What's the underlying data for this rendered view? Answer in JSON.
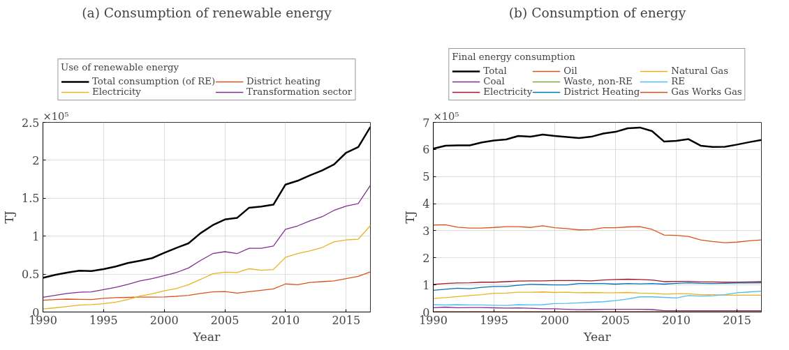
{
  "chart_data": [
    {
      "type": "line",
      "title": "(a) Consumption of renewable energy",
      "xlabel": "Year",
      "ylabel": "TJ",
      "legend_title": "Use of renewable energy",
      "annotations": [
        "×10⁵"
      ],
      "x": [
        1990,
        1991,
        1992,
        1993,
        1994,
        1995,
        1996,
        1997,
        1998,
        1999,
        2000,
        2001,
        2002,
        2003,
        2004,
        2005,
        2006,
        2007,
        2008,
        2009,
        2010,
        2011,
        2012,
        2013,
        2014,
        2015,
        2016,
        2017
      ],
      "series": [
        {
          "name": "Total consumption (of RE)",
          "color": "#000000",
          "values": [
            0.45,
            0.49,
            0.52,
            0.545,
            0.54,
            0.565,
            0.6,
            0.645,
            0.675,
            0.71,
            0.78,
            0.845,
            0.905,
            1.04,
            1.145,
            1.22,
            1.24,
            1.375,
            1.39,
            1.415,
            1.68,
            1.73,
            1.8,
            1.865,
            1.945,
            2.1,
            2.175,
            2.44
          ]
        },
        {
          "name": "District heating",
          "color": "#d95319",
          "values": [
            0.155,
            0.165,
            0.17,
            0.167,
            0.165,
            0.18,
            0.19,
            0.193,
            0.196,
            0.197,
            0.198,
            0.207,
            0.22,
            0.245,
            0.265,
            0.27,
            0.25,
            0.268,
            0.287,
            0.305,
            0.37,
            0.36,
            0.39,
            0.4,
            0.41,
            0.44,
            0.47,
            0.53
          ]
        },
        {
          "name": "Electricity",
          "color": "#edb120",
          "values": [
            0.04,
            0.055,
            0.072,
            0.09,
            0.098,
            0.11,
            0.13,
            0.165,
            0.21,
            0.24,
            0.28,
            0.31,
            0.36,
            0.43,
            0.505,
            0.525,
            0.52,
            0.57,
            0.55,
            0.56,
            0.72,
            0.77,
            0.805,
            0.85,
            0.925,
            0.95,
            0.96,
            1.14
          ]
        },
        {
          "name": "Transformation sector",
          "color": "#7e2f8e",
          "values": [
            0.195,
            0.22,
            0.245,
            0.26,
            0.265,
            0.295,
            0.325,
            0.365,
            0.41,
            0.44,
            0.48,
            0.52,
            0.58,
            0.68,
            0.77,
            0.795,
            0.77,
            0.84,
            0.84,
            0.87,
            1.09,
            1.135,
            1.2,
            1.255,
            1.34,
            1.395,
            1.43,
            1.67
          ]
        }
      ],
      "xlim": [
        1990,
        2017
      ],
      "xticks": [
        1990,
        1995,
        2000,
        2005,
        2010,
        2015
      ],
      "ylim": [
        0,
        2.5
      ],
      "yticks": [
        0,
        0.5,
        1,
        1.5,
        2,
        2.5
      ],
      "grid": true,
      "legend": "top"
    },
    {
      "type": "line",
      "title": "(b) Consumption of energy",
      "xlabel": "Year",
      "ylabel": "TJ",
      "legend_title": "Final energy consumption",
      "annotations": [
        "×10⁵"
      ],
      "x": [
        1990,
        1991,
        1992,
        1993,
        1994,
        1995,
        1996,
        1997,
        1998,
        1999,
        2000,
        2001,
        2002,
        2003,
        2004,
        2005,
        2006,
        2007,
        2008,
        2009,
        2010,
        2011,
        2012,
        2013,
        2014,
        2015,
        2016,
        2017
      ],
      "series": [
        {
          "name": "Total",
          "color": "#000000",
          "values": [
            6.03,
            6.14,
            6.15,
            6.15,
            6.26,
            6.33,
            6.37,
            6.5,
            6.47,
            6.55,
            6.5,
            6.46,
            6.42,
            6.47,
            6.59,
            6.65,
            6.78,
            6.81,
            6.68,
            6.29,
            6.32,
            6.38,
            6.14,
            6.09,
            6.1,
            6.18,
            6.27,
            6.35
          ]
        },
        {
          "name": "Oil",
          "color": "#d95319",
          "values": [
            3.21,
            3.22,
            3.13,
            3.1,
            3.1,
            3.12,
            3.15,
            3.15,
            3.12,
            3.18,
            3.11,
            3.08,
            3.03,
            3.04,
            3.11,
            3.11,
            3.14,
            3.15,
            3.05,
            2.84,
            2.83,
            2.79,
            2.66,
            2.6,
            2.56,
            2.58,
            2.63,
            2.66
          ]
        },
        {
          "name": "Natural Gas",
          "color": "#edb120",
          "values": [
            0.5,
            0.53,
            0.57,
            0.61,
            0.64,
            0.69,
            0.7,
            0.73,
            0.73,
            0.74,
            0.72,
            0.73,
            0.71,
            0.72,
            0.71,
            0.71,
            0.72,
            0.7,
            0.69,
            0.66,
            0.67,
            0.67,
            0.64,
            0.64,
            0.62,
            0.62,
            0.62,
            0.62
          ]
        },
        {
          "name": "Coal",
          "color": "#7e2f8e",
          "values": [
            0.16,
            0.18,
            0.16,
            0.165,
            0.165,
            0.155,
            0.145,
            0.15,
            0.14,
            0.12,
            0.12,
            0.1,
            0.085,
            0.09,
            0.1,
            0.1,
            0.1,
            0.1,
            0.09,
            0.05,
            0.05,
            0.05,
            0.05,
            0.05,
            0.05,
            0.05,
            0.05,
            0.05
          ]
        },
        {
          "name": "Waste, non-RE",
          "color": "#77ac30",
          "values": [
            null,
            null,
            null,
            null,
            null,
            null,
            null,
            null,
            null,
            null,
            null,
            null,
            null,
            null,
            null,
            null,
            null,
            null,
            null,
            null,
            null,
            null,
            null,
            null,
            null,
            null,
            null,
            null
          ]
        },
        {
          "name": "RE",
          "color": "#4dbeee",
          "values": [
            0.27,
            0.26,
            0.27,
            0.26,
            0.26,
            0.25,
            0.24,
            0.27,
            0.26,
            0.27,
            0.31,
            0.32,
            0.34,
            0.36,
            0.38,
            0.42,
            0.48,
            0.56,
            0.56,
            0.54,
            0.52,
            0.61,
            0.59,
            0.6,
            0.64,
            0.71,
            0.74,
            0.77
          ]
        },
        {
          "name": "Electricity",
          "color": "#a2142f",
          "values": [
            1.02,
            1.05,
            1.07,
            1.08,
            1.1,
            1.1,
            1.12,
            1.14,
            1.15,
            1.15,
            1.16,
            1.16,
            1.16,
            1.15,
            1.18,
            1.2,
            1.21,
            1.2,
            1.18,
            1.12,
            1.13,
            1.13,
            1.11,
            1.11,
            1.1,
            1.1,
            1.11,
            1.12
          ]
        },
        {
          "name": "District Heating",
          "color": "#0072bd",
          "values": [
            0.8,
            0.84,
            0.88,
            0.86,
            0.91,
            0.94,
            0.94,
            0.99,
            1.02,
            1.01,
            1.0,
            1.0,
            1.05,
            1.05,
            1.05,
            1.03,
            1.05,
            1.04,
            1.05,
            1.03,
            1.06,
            1.08,
            1.06,
            1.05,
            1.06,
            1.07,
            1.07,
            1.08
          ]
        },
        {
          "name": "Gas Works Gas",
          "color": "#c8501c",
          "values": [
            0.01,
            0.01,
            0.01,
            0.01,
            0.01,
            0.01,
            0.01,
            0.01,
            0.01,
            0.01,
            0.01,
            0.01,
            0.01,
            0.01,
            0.01,
            0.01,
            0.01,
            0.01,
            0.01,
            0.01,
            0.01,
            0.01,
            0.01,
            0.01,
            0.01,
            0.01,
            0.01,
            0.01
          ]
        }
      ],
      "xlim": [
        1990,
        2017
      ],
      "xticks": [
        1990,
        1995,
        2000,
        2005,
        2010,
        2015
      ],
      "ylim": [
        0,
        7
      ],
      "yticks": [
        0,
        1,
        2,
        3,
        4,
        5,
        6,
        7
      ],
      "grid": true,
      "legend": "top"
    }
  ]
}
